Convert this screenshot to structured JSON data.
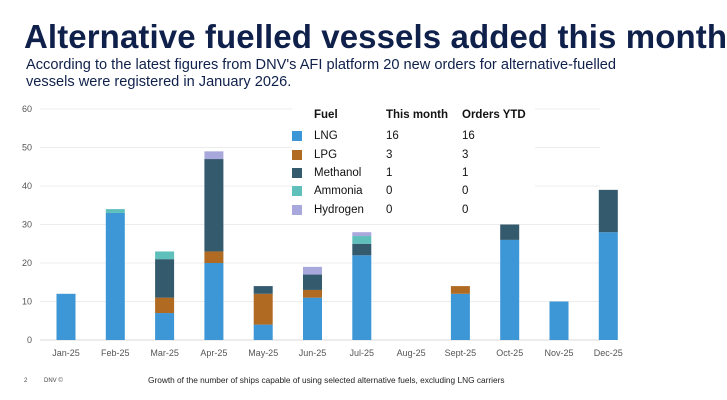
{
  "header": {
    "title": "Alternative fuelled vessels added this month",
    "subtitle": "According to the latest figures from DNV's AFI platform 20 new orders for alternative-fuelled vessels were registered in January 2026."
  },
  "legend_table": {
    "headers": [
      "Fuel",
      "This month",
      "Orders YTD"
    ],
    "rows": [
      {
        "fuel": "LNG",
        "this_month": "16",
        "ytd": "16",
        "color": "#3d96d6"
      },
      {
        "fuel": "LPG",
        "this_month": "3",
        "ytd": "3",
        "color": "#b06a22"
      },
      {
        "fuel": "Methanol",
        "this_month": "1",
        "ytd": "1",
        "color": "#345a6e"
      },
      {
        "fuel": "Ammonia",
        "this_month": "0",
        "ytd": "0",
        "color": "#5fbfbb"
      },
      {
        "fuel": "Hydrogen",
        "this_month": "0",
        "ytd": "0",
        "color": "#a8a8dc"
      }
    ]
  },
  "chart_data": {
    "type": "bar",
    "stacked": true,
    "title": "",
    "xlabel": "",
    "ylabel": "",
    "ylim": [
      0,
      60
    ],
    "yticks": [
      0,
      10,
      20,
      30,
      40,
      50,
      60
    ],
    "grid": true,
    "categories": [
      "Jan-25",
      "Feb-25",
      "Mar-25",
      "Apr-25",
      "May-25",
      "Jun-25",
      "Jul-25",
      "Aug-25",
      "Sept-25",
      "Oct-25",
      "Nov-25",
      "Dec-25"
    ],
    "series": [
      {
        "name": "LNG",
        "color": "#3d96d6",
        "values": [
          12,
          33,
          7,
          20,
          4,
          11,
          22,
          0,
          12,
          26,
          10,
          28
        ]
      },
      {
        "name": "LPG",
        "color": "#b06a22",
        "values": [
          0,
          0,
          4,
          3,
          8,
          2,
          0,
          0,
          2,
          0,
          0,
          0
        ]
      },
      {
        "name": "Methanol",
        "color": "#345a6e",
        "values": [
          0,
          0,
          10,
          24,
          2,
          4,
          3,
          0,
          0,
          4,
          0,
          11
        ]
      },
      {
        "name": "Ammonia",
        "color": "#5fbfbb",
        "values": [
          0,
          1,
          2,
          0,
          0,
          0,
          2,
          0,
          0,
          0,
          0,
          0
        ]
      },
      {
        "name": "Hydrogen",
        "color": "#a8a8dc",
        "values": [
          0,
          0,
          0,
          2,
          0,
          2,
          1,
          0,
          0,
          0,
          0,
          0
        ]
      }
    ],
    "caption": "Growth of the number of ships capable of using selected alternative fuels, excluding LNG carriers"
  },
  "footer": {
    "page_number": "2",
    "brand": "DNV ©"
  }
}
